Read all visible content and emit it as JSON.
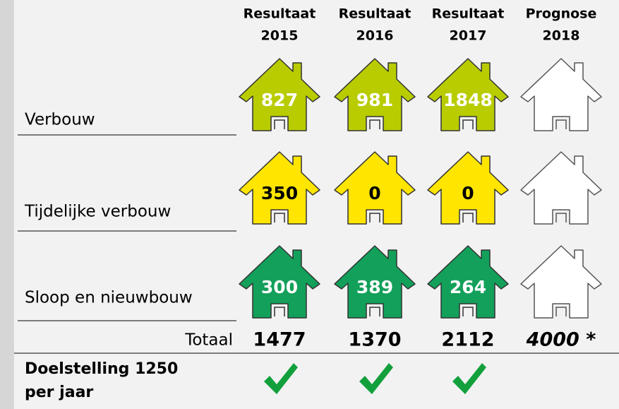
{
  "header": {
    "columns": [
      {
        "line1": "Resultaat",
        "line2": "2015"
      },
      {
        "line1": "Resultaat",
        "line2": "2016"
      },
      {
        "line1": "Resultaat",
        "line2": "2017"
      },
      {
        "line1": "Prognose",
        "line2": "2018"
      }
    ]
  },
  "rows": [
    {
      "label": "Verbouw",
      "color": "#b8cc00",
      "text_color": "#ffffff",
      "values": [
        827,
        981,
        1848
      ]
    },
    {
      "label": "Tijdelijke verbouw",
      "color": "#ffe500",
      "text_color": "#000000",
      "values": [
        350,
        0,
        0
      ]
    },
    {
      "label": "Sloop en nieuwbouw",
      "color": "#12a05a",
      "text_color": "#ffffff",
      "values": [
        300,
        389,
        264
      ]
    }
  ],
  "totals": {
    "label": "Totaal",
    "values": [
      1477,
      1370,
      2112,
      "4000 *"
    ]
  },
  "target": {
    "lines": [
      "Doelstelling 1250",
      "per jaar"
    ]
  }
}
